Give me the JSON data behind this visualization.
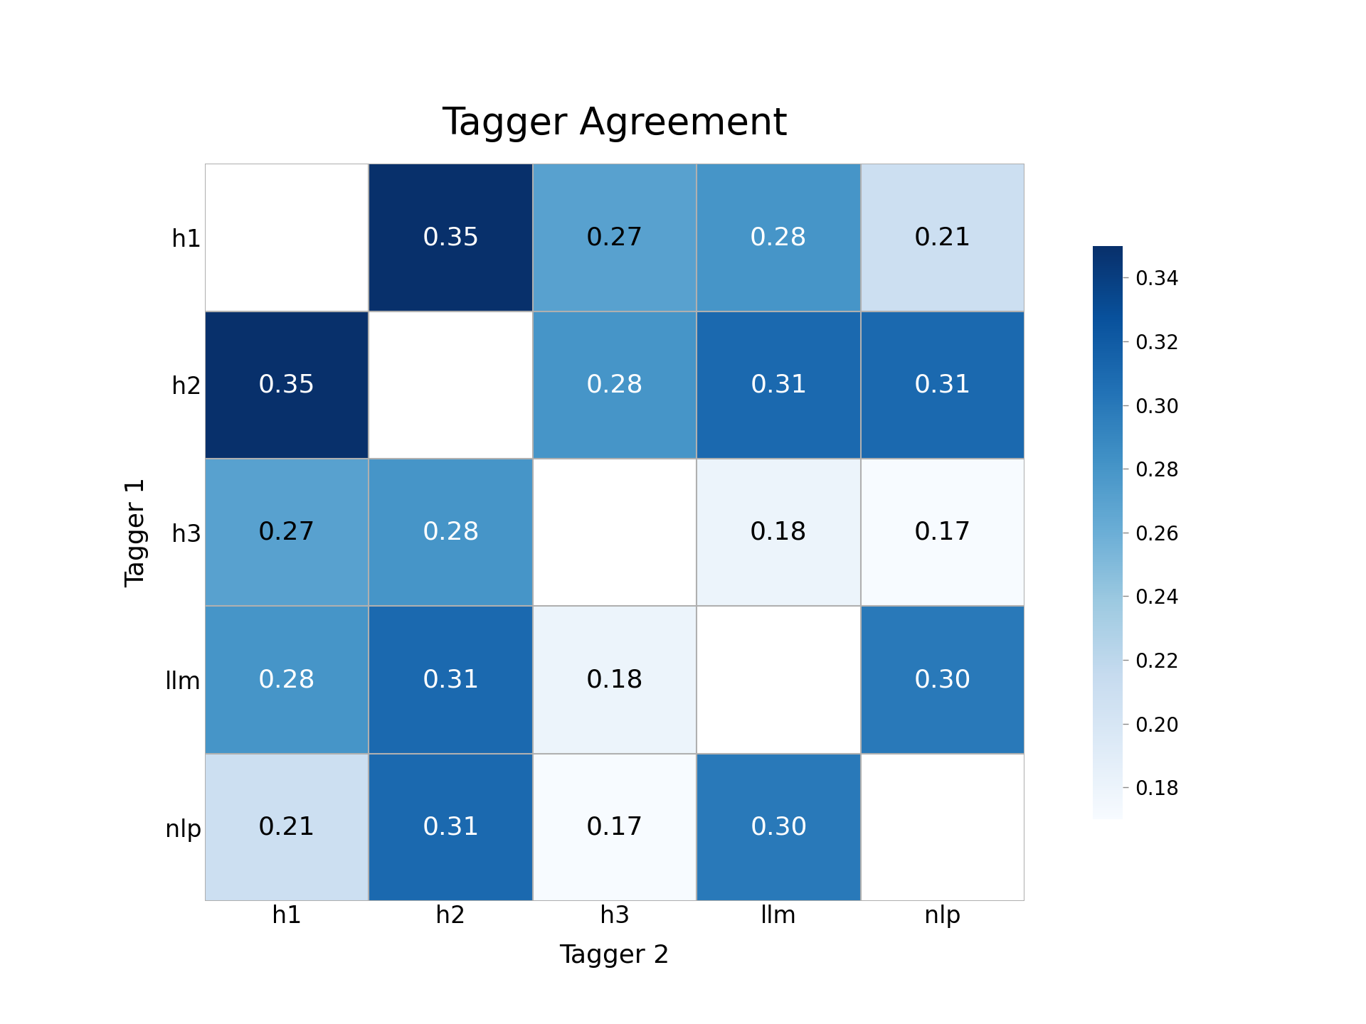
{
  "title": "Tagger Agreement",
  "taggers": [
    "h1",
    "h2",
    "h3",
    "llm",
    "nlp"
  ],
  "matrix": [
    [
      null,
      0.35,
      0.27,
      0.28,
      0.21
    ],
    [
      0.35,
      null,
      0.28,
      0.31,
      0.31
    ],
    [
      0.27,
      0.28,
      null,
      0.18,
      0.17
    ],
    [
      0.28,
      0.31,
      0.18,
      null,
      0.3
    ],
    [
      0.21,
      0.31,
      0.17,
      0.3,
      null
    ]
  ],
  "vmin": 0.17,
  "vmax": 0.35,
  "colorbar_ticks": [
    0.18,
    0.2,
    0.22,
    0.24,
    0.26,
    0.28,
    0.3,
    0.32,
    0.34
  ],
  "cmap": "Blues",
  "xlabel": "Tagger 2",
  "ylabel": "Tagger 1",
  "title_fontsize": 38,
  "label_fontsize": 26,
  "tick_fontsize": 24,
  "annot_fontsize": 26,
  "colorbar_fontsize": 20,
  "fig_background": "#ffffff",
  "cell_linecolor": "#b0b0b0",
  "cell_linewidth": 1.5
}
